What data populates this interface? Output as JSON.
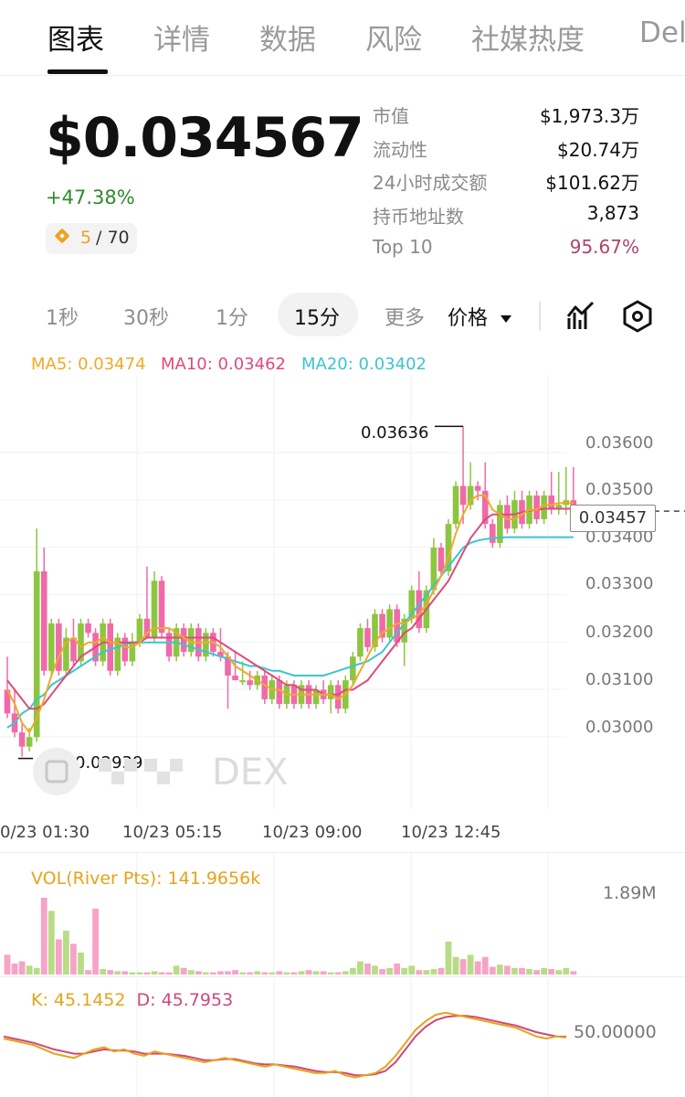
{
  "tabs": [
    "图表",
    "详情",
    "数据",
    "风险",
    "社媒热度",
    "Del"
  ],
  "price": {
    "current": "$0.034567",
    "change": "+47.38%",
    "rank": "5",
    "rank_total": "/ 70"
  },
  "stats": [
    {
      "label": "市值",
      "value": "$1,973.3万"
    },
    {
      "label": "流动性",
      "value": "$20.74万"
    },
    {
      "label": "24小时成交额",
      "value": "$101.62万"
    },
    {
      "label": "持币地址数",
      "value": "3,873"
    },
    {
      "label": "Top 10",
      "value": "95.67%"
    }
  ],
  "intervals": {
    "items": [
      "1秒",
      "30秒",
      "1分",
      "15分",
      "更多"
    ],
    "active": "15分",
    "price_mode": "价格"
  },
  "icons": {
    "indicator": "chart-indicator-icon",
    "settings": "hexagon-settings-icon",
    "dropdown": "caret-down-icon"
  },
  "colors": {
    "up": "#8cc63f",
    "down": "#f06aa8",
    "ma5": "#f0a928",
    "ma10": "#e04a7a",
    "ma20": "#3cc4cf",
    "top10_value": "#b0446a"
  },
  "ma": {
    "ma5": "MA5: 0.03474",
    "ma10": "MA10: 0.03462",
    "ma20": "MA20: 0.03402"
  },
  "chart": {
    "y_ticks": [
      "0.03600",
      "0.03500",
      "0.03400",
      "0.03300",
      "0.03200",
      "0.03100",
      "0.03000"
    ],
    "x_ticks": [
      "0/23 01:30",
      "10/23 05:15",
      "10/23 09:00",
      "10/23 12:45"
    ],
    "current_price": "0.03457",
    "high_annotation": "0.03636",
    "low_annotation": "0.02939",
    "watermark": "DEX"
  },
  "chart_data": {
    "type": "candlestick",
    "y_range": [
      0.029,
      0.0366
    ],
    "candles": [
      {
        "o": 0.0308,
        "h": 0.0315,
        "l": 0.0302,
        "c": 0.0303
      },
      {
        "o": 0.0303,
        "h": 0.0308,
        "l": 0.0298,
        "c": 0.0299
      },
      {
        "o": 0.0299,
        "h": 0.0301,
        "l": 0.02939,
        "c": 0.0296
      },
      {
        "o": 0.0296,
        "h": 0.03,
        "l": 0.0295,
        "c": 0.0298
      },
      {
        "o": 0.0298,
        "h": 0.0342,
        "l": 0.0297,
        "c": 0.0333
      },
      {
        "o": 0.0333,
        "h": 0.0338,
        "l": 0.0311,
        "c": 0.0312
      },
      {
        "o": 0.0312,
        "h": 0.0323,
        "l": 0.0311,
        "c": 0.0322
      },
      {
        "o": 0.0322,
        "h": 0.0323,
        "l": 0.0311,
        "c": 0.0312
      },
      {
        "o": 0.0312,
        "h": 0.0321,
        "l": 0.0311,
        "c": 0.0319
      },
      {
        "o": 0.0319,
        "h": 0.0323,
        "l": 0.0313,
        "c": 0.0314
      },
      {
        "o": 0.0314,
        "h": 0.0323,
        "l": 0.0313,
        "c": 0.0322
      },
      {
        "o": 0.0322,
        "h": 0.0323,
        "l": 0.0319,
        "c": 0.032
      },
      {
        "o": 0.032,
        "h": 0.0321,
        "l": 0.0313,
        "c": 0.0314
      },
      {
        "o": 0.0314,
        "h": 0.0323,
        "l": 0.0313,
        "c": 0.0322
      },
      {
        "o": 0.0322,
        "h": 0.0323,
        "l": 0.0311,
        "c": 0.0312
      },
      {
        "o": 0.0312,
        "h": 0.032,
        "l": 0.0311,
        "c": 0.0319
      },
      {
        "o": 0.0319,
        "h": 0.032,
        "l": 0.0313,
        "c": 0.0314
      },
      {
        "o": 0.0314,
        "h": 0.032,
        "l": 0.0313,
        "c": 0.0318
      },
      {
        "o": 0.0318,
        "h": 0.0324,
        "l": 0.0317,
        "c": 0.0323
      },
      {
        "o": 0.0323,
        "h": 0.0334,
        "l": 0.0319,
        "c": 0.0319
      },
      {
        "o": 0.0319,
        "h": 0.0333,
        "l": 0.0318,
        "c": 0.0331
      },
      {
        "o": 0.0331,
        "h": 0.0332,
        "l": 0.0319,
        "c": 0.032
      },
      {
        "o": 0.032,
        "h": 0.0321,
        "l": 0.0314,
        "c": 0.0315
      },
      {
        "o": 0.0315,
        "h": 0.0322,
        "l": 0.0314,
        "c": 0.0321
      },
      {
        "o": 0.0321,
        "h": 0.0322,
        "l": 0.0315,
        "c": 0.0316
      },
      {
        "o": 0.0316,
        "h": 0.0322,
        "l": 0.0315,
        "c": 0.0321
      },
      {
        "o": 0.0321,
        "h": 0.0322,
        "l": 0.0314,
        "c": 0.0315
      },
      {
        "o": 0.0315,
        "h": 0.0321,
        "l": 0.0314,
        "c": 0.032
      },
      {
        "o": 0.032,
        "h": 0.0321,
        "l": 0.0315,
        "c": 0.0316
      },
      {
        "o": 0.0316,
        "h": 0.0321,
        "l": 0.0314,
        "c": 0.0315
      },
      {
        "o": 0.0315,
        "h": 0.0316,
        "l": 0.0304,
        "c": 0.0311
      },
      {
        "o": 0.0311,
        "h": 0.0316,
        "l": 0.031,
        "c": 0.031
      },
      {
        "o": 0.031,
        "h": 0.0314,
        "l": 0.0309,
        "c": 0.031
      },
      {
        "o": 0.031,
        "h": 0.0312,
        "l": 0.0308,
        "c": 0.0309
      },
      {
        "o": 0.0309,
        "h": 0.0312,
        "l": 0.0308,
        "c": 0.0311
      },
      {
        "o": 0.0311,
        "h": 0.0312,
        "l": 0.0305,
        "c": 0.0306
      },
      {
        "o": 0.0306,
        "h": 0.0311,
        "l": 0.0305,
        "c": 0.031
      },
      {
        "o": 0.031,
        "h": 0.0311,
        "l": 0.0304,
        "c": 0.0305
      },
      {
        "o": 0.0305,
        "h": 0.031,
        "l": 0.0304,
        "c": 0.0309
      },
      {
        "o": 0.0309,
        "h": 0.031,
        "l": 0.0304,
        "c": 0.0305
      },
      {
        "o": 0.0305,
        "h": 0.031,
        "l": 0.0304,
        "c": 0.0309
      },
      {
        "o": 0.0309,
        "h": 0.031,
        "l": 0.0304,
        "c": 0.0305
      },
      {
        "o": 0.0305,
        "h": 0.0309,
        "l": 0.0304,
        "c": 0.0308
      },
      {
        "o": 0.0308,
        "h": 0.031,
        "l": 0.0305,
        "c": 0.0306
      },
      {
        "o": 0.0306,
        "h": 0.031,
        "l": 0.0303,
        "c": 0.0309
      },
      {
        "o": 0.0309,
        "h": 0.031,
        "l": 0.0303,
        "c": 0.0304
      },
      {
        "o": 0.0304,
        "h": 0.0311,
        "l": 0.0303,
        "c": 0.031
      },
      {
        "o": 0.031,
        "h": 0.0316,
        "l": 0.0309,
        "c": 0.0315
      },
      {
        "o": 0.0315,
        "h": 0.0322,
        "l": 0.0314,
        "c": 0.0321
      },
      {
        "o": 0.0321,
        "h": 0.0323,
        "l": 0.0316,
        "c": 0.0317
      },
      {
        "o": 0.0317,
        "h": 0.0325,
        "l": 0.0316,
        "c": 0.0324
      },
      {
        "o": 0.0324,
        "h": 0.0325,
        "l": 0.0318,
        "c": 0.0319
      },
      {
        "o": 0.0319,
        "h": 0.0326,
        "l": 0.0318,
        "c": 0.0325
      },
      {
        "o": 0.0325,
        "h": 0.0326,
        "l": 0.0317,
        "c": 0.0318
      },
      {
        "o": 0.0318,
        "h": 0.0324,
        "l": 0.0313,
        "c": 0.0323
      },
      {
        "o": 0.0323,
        "h": 0.033,
        "l": 0.0322,
        "c": 0.0329
      },
      {
        "o": 0.0329,
        "h": 0.0333,
        "l": 0.032,
        "c": 0.0321
      },
      {
        "o": 0.0321,
        "h": 0.033,
        "l": 0.032,
        "c": 0.0329
      },
      {
        "o": 0.0329,
        "h": 0.034,
        "l": 0.0328,
        "c": 0.0338
      },
      {
        "o": 0.0338,
        "h": 0.0339,
        "l": 0.0332,
        "c": 0.0333
      },
      {
        "o": 0.0333,
        "h": 0.0344,
        "l": 0.0332,
        "c": 0.0343
      },
      {
        "o": 0.0343,
        "h": 0.0352,
        "l": 0.0342,
        "c": 0.0351
      },
      {
        "o": 0.0351,
        "h": 0.03636,
        "l": 0.0343,
        "c": 0.0347
      },
      {
        "o": 0.0347,
        "h": 0.0356,
        "l": 0.0346,
        "c": 0.0351
      },
      {
        "o": 0.0351,
        "h": 0.0352,
        "l": 0.0348,
        "c": 0.035
      },
      {
        "o": 0.035,
        "h": 0.0356,
        "l": 0.0342,
        "c": 0.0343
      },
      {
        "o": 0.0343,
        "h": 0.0344,
        "l": 0.0338,
        "c": 0.0339
      },
      {
        "o": 0.0339,
        "h": 0.0348,
        "l": 0.0338,
        "c": 0.0347
      },
      {
        "o": 0.0347,
        "h": 0.0349,
        "l": 0.0341,
        "c": 0.0342
      },
      {
        "o": 0.0342,
        "h": 0.035,
        "l": 0.0341,
        "c": 0.0348
      },
      {
        "o": 0.0348,
        "h": 0.035,
        "l": 0.0342,
        "c": 0.0343
      },
      {
        "o": 0.0343,
        "h": 0.035,
        "l": 0.0342,
        "c": 0.0349
      },
      {
        "o": 0.0349,
        "h": 0.035,
        "l": 0.0343,
        "c": 0.0344
      },
      {
        "o": 0.0344,
        "h": 0.035,
        "l": 0.0343,
        "c": 0.0349
      },
      {
        "o": 0.0349,
        "h": 0.0354,
        "l": 0.0345,
        "c": 0.0346
      },
      {
        "o": 0.0346,
        "h": 0.0354,
        "l": 0.0345,
        "c": 0.0347
      },
      {
        "o": 0.0347,
        "h": 0.0355,
        "l": 0.0345,
        "c": 0.0348
      },
      {
        "o": 0.0348,
        "h": 0.0355,
        "l": 0.0344,
        "c": 0.03457
      }
    ],
    "ma5": [
      0.0308,
      0.0305,
      0.0301,
      0.0299,
      0.0302,
      0.0306,
      0.0311,
      0.0315,
      0.0318,
      0.0319,
      0.0317,
      0.0318,
      0.0318,
      0.0319,
      0.0318,
      0.0318,
      0.0317,
      0.0317,
      0.0318,
      0.032,
      0.0321,
      0.0321,
      0.0321,
      0.032,
      0.0319,
      0.0318,
      0.0318,
      0.0318,
      0.0318,
      0.0317,
      0.0315,
      0.0313,
      0.0312,
      0.0311,
      0.031,
      0.0309,
      0.0308,
      0.0308,
      0.0307,
      0.0307,
      0.0307,
      0.0307,
      0.0307,
      0.0307,
      0.0307,
      0.0306,
      0.0307,
      0.0309,
      0.0312,
      0.0315,
      0.0318,
      0.032,
      0.0321,
      0.0322,
      0.0322,
      0.0323,
      0.0324,
      0.0326,
      0.0329,
      0.0332,
      0.0336,
      0.0341,
      0.0345,
      0.0348,
      0.0349,
      0.0349,
      0.0346,
      0.0345,
      0.0344,
      0.0344,
      0.0345,
      0.0346,
      0.0346,
      0.0347,
      0.0347,
      0.03474,
      0.03474,
      0.03474
    ],
    "ma10": [
      0.031,
      0.0308,
      0.0306,
      0.0304,
      0.0304,
      0.0305,
      0.0307,
      0.0309,
      0.0311,
      0.0313,
      0.0315,
      0.0316,
      0.0317,
      0.0318,
      0.0318,
      0.0318,
      0.0318,
      0.0318,
      0.0318,
      0.0319,
      0.0319,
      0.0319,
      0.0319,
      0.0319,
      0.0319,
      0.0319,
      0.0319,
      0.0319,
      0.0319,
      0.0318,
      0.0317,
      0.0316,
      0.0315,
      0.0314,
      0.0313,
      0.0312,
      0.0311,
      0.031,
      0.0309,
      0.0309,
      0.0308,
      0.0308,
      0.0308,
      0.0307,
      0.0307,
      0.0307,
      0.0308,
      0.0308,
      0.0309,
      0.031,
      0.0312,
      0.0314,
      0.0316,
      0.0318,
      0.032,
      0.0321,
      0.0323,
      0.0325,
      0.0327,
      0.0329,
      0.0331,
      0.0334,
      0.0337,
      0.034,
      0.0342,
      0.0344,
      0.0345,
      0.0345,
      0.0345,
      0.0345,
      0.03455,
      0.03458,
      0.0346,
      0.03462,
      0.03462,
      0.03462,
      0.03462,
      0.03462
    ],
    "ma20": [
      0.03,
      0.0301,
      0.0303,
      0.0304,
      0.0306,
      0.0307,
      0.0309,
      0.031,
      0.0311,
      0.0312,
      0.0313,
      0.0314,
      0.0315,
      0.0316,
      0.03165,
      0.0317,
      0.03175,
      0.0318,
      0.0318,
      0.0318,
      0.0318,
      0.0318,
      0.0318,
      0.0318,
      0.03175,
      0.0317,
      0.03165,
      0.0316,
      0.03155,
      0.0315,
      0.03145,
      0.0314,
      0.03135,
      0.0313,
      0.0313,
      0.03125,
      0.0312,
      0.0312,
      0.03115,
      0.0311,
      0.0311,
      0.0311,
      0.0311,
      0.0311,
      0.03115,
      0.0312,
      0.03125,
      0.0313,
      0.03135,
      0.0314,
      0.0315,
      0.0316,
      0.0318,
      0.032,
      0.0322,
      0.0324,
      0.0326,
      0.0328,
      0.033,
      0.0332,
      0.0334,
      0.0336,
      0.0338,
      0.0339,
      0.03395,
      0.03398,
      0.034,
      0.03401,
      0.03402,
      0.03402,
      0.03402,
      0.03402,
      0.03402,
      0.03402,
      0.03402,
      0.03402,
      0.03402,
      0.03402
    ],
    "volume_label": "VOL(River Pts): 141.9656k",
    "volume_max": "1.89M",
    "volume": [
      0.18,
      0.1,
      0.12,
      0.08,
      0.06,
      0.7,
      0.58,
      0.32,
      0.4,
      0.28,
      0.2,
      0.04,
      0.6,
      0.05,
      0.04,
      0.03,
      0.03,
      0.02,
      0.02,
      0.02,
      0.03,
      0.02,
      0.02,
      0.08,
      0.06,
      0.04,
      0.03,
      0.02,
      0.02,
      0.03,
      0.03,
      0.04,
      0.02,
      0.02,
      0.03,
      0.02,
      0.02,
      0.03,
      0.02,
      0.02,
      0.03,
      0.04,
      0.03,
      0.03,
      0.02,
      0.02,
      0.03,
      0.06,
      0.12,
      0.1,
      0.08,
      0.05,
      0.06,
      0.1,
      0.06,
      0.08,
      0.04,
      0.04,
      0.05,
      0.06,
      0.3,
      0.16,
      0.14,
      0.18,
      0.12,
      0.16,
      0.07,
      0.09,
      0.08,
      0.06,
      0.06,
      0.05,
      0.04,
      0.06,
      0.05,
      0.04,
      0.06,
      0.03
    ],
    "kd_label_k": "K: 45.1452",
    "kd_label_d": "D: 45.7953",
    "kd_axis": "50.00000",
    "k": [
      44,
      42,
      40,
      38,
      34,
      30,
      28,
      26,
      30,
      34,
      36,
      32,
      34,
      30,
      28,
      32,
      30,
      28,
      26,
      24,
      22,
      24,
      26,
      24,
      22,
      20,
      18,
      20,
      18,
      16,
      14,
      12,
      12,
      14,
      10,
      8,
      10,
      12,
      18,
      28,
      40,
      52,
      60,
      66,
      68,
      66,
      64,
      62,
      60,
      58,
      56,
      54,
      50,
      46,
      44,
      46,
      45
    ],
    "d": [
      46,
      44,
      42,
      40,
      37,
      34,
      32,
      30,
      30,
      32,
      34,
      33,
      33,
      32,
      30,
      30,
      30,
      29,
      28,
      26,
      24,
      24,
      25,
      25,
      23,
      21,
      20,
      20,
      19,
      18,
      16,
      14,
      13,
      13,
      12,
      10,
      10,
      11,
      14,
      22,
      34,
      46,
      55,
      61,
      64,
      65,
      65,
      64,
      62,
      60,
      58,
      56,
      53,
      50,
      48,
      46,
      45.8
    ]
  }
}
